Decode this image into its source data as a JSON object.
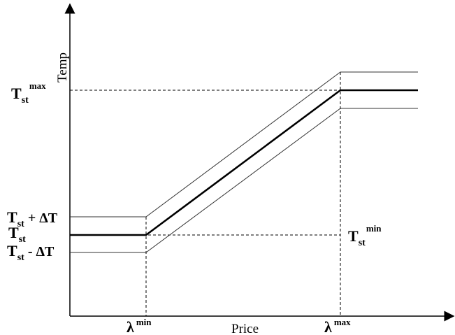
{
  "axes": {
    "x_label": "Price",
    "y_label": "Temp"
  },
  "labels": {
    "t_max": {
      "base": "T",
      "sub": "st",
      "sup": "max"
    },
    "t_plus": {
      "base": "T",
      "sub": "st",
      "rest": " + ΔT"
    },
    "t_st": {
      "base": "T",
      "sub": "st"
    },
    "t_minus": {
      "base": "T",
      "sub": "st",
      "rest": " - ΔT"
    },
    "t_min": {
      "base": "T",
      "sub": "st",
      "sup": "min"
    },
    "lambda_min": {
      "base": "λ",
      "sup": "min"
    },
    "lambda_max": {
      "base": "λ",
      "sup": "max"
    }
  }
}
